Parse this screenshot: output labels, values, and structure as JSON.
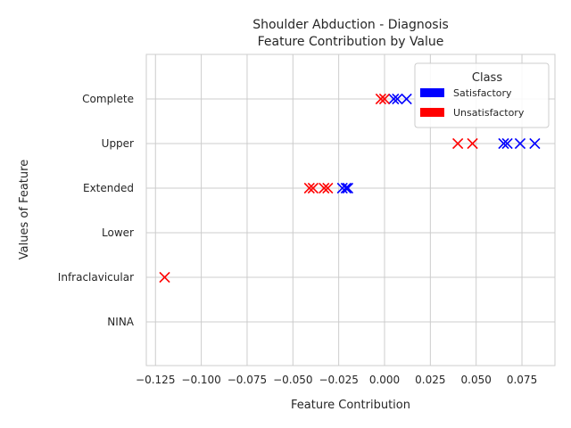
{
  "chart_data": {
    "type": "scatter",
    "title": "Shoulder Abduction - Diagnosis",
    "subtitle": "Feature Contribution by Value",
    "xlabel": "Feature Contribution",
    "ylabel": "Values of Feature",
    "xlim": [
      -0.13,
      0.093
    ],
    "xticks": [
      "−0.125",
      "−0.100",
      "−0.075",
      "−0.050",
      "−0.025",
      "0.000",
      "0.025",
      "0.050",
      "0.075"
    ],
    "xtick_values": [
      -0.125,
      -0.1,
      -0.075,
      -0.05,
      -0.025,
      0.0,
      0.025,
      0.05,
      0.075
    ],
    "categories": [
      "Complete",
      "Upper",
      "Extended",
      "Lower",
      "Infraclavicular",
      "NINA"
    ],
    "grid": true,
    "marker": "x",
    "legend": {
      "title": "Class",
      "position": "top-right",
      "entries": [
        {
          "label": "Satisfactory",
          "color": "#0000ff"
        },
        {
          "label": "Unsatisfactory",
          "color": "#ff0000"
        }
      ]
    },
    "series": [
      {
        "name": "Satisfactory",
        "color": "#0000ff",
        "points": [
          {
            "x": 0.005,
            "y": "Complete"
          },
          {
            "x": 0.007,
            "y": "Complete"
          },
          {
            "x": 0.012,
            "y": "Complete"
          },
          {
            "x": 0.065,
            "y": "Upper"
          },
          {
            "x": 0.067,
            "y": "Upper"
          },
          {
            "x": 0.074,
            "y": "Upper"
          },
          {
            "x": 0.082,
            "y": "Upper"
          },
          {
            "x": -0.023,
            "y": "Extended"
          },
          {
            "x": -0.021,
            "y": "Extended"
          },
          {
            "x": -0.02,
            "y": "Extended"
          }
        ]
      },
      {
        "name": "Unsatisfactory",
        "color": "#ff0000",
        "points": [
          {
            "x": -0.002,
            "y": "Complete"
          },
          {
            "x": 0.0,
            "y": "Complete"
          },
          {
            "x": 0.04,
            "y": "Upper"
          },
          {
            "x": 0.048,
            "y": "Upper"
          },
          {
            "x": -0.041,
            "y": "Extended"
          },
          {
            "x": -0.039,
            "y": "Extended"
          },
          {
            "x": -0.033,
            "y": "Extended"
          },
          {
            "x": -0.031,
            "y": "Extended"
          },
          {
            "x": -0.12,
            "y": "Infraclavicular"
          }
        ]
      }
    ]
  }
}
